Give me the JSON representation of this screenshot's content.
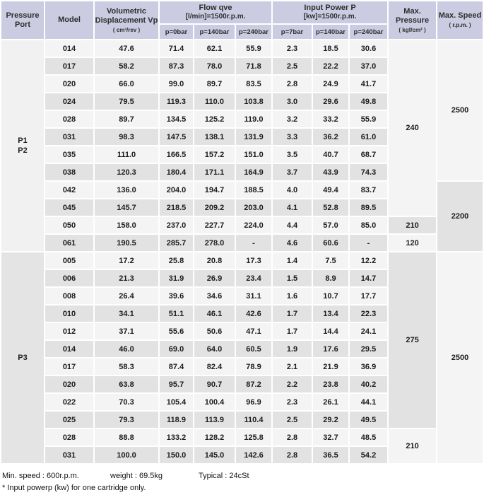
{
  "colors": {
    "header_bg": "#cbcbe1",
    "row_light": "#f4f4f4",
    "row_gray": "#e2e2e2"
  },
  "header": {
    "pressure_port": "Pressure Port",
    "model": "Model",
    "volumetric_title": "Volumetric Displacement Vp",
    "volumetric_unit": "( cm³/rev )",
    "flow_title": "Flow qve",
    "flow_subtitle": "[l/min]=1500r.p.m.",
    "flow_cols": [
      "p=0bar",
      "p=140bar",
      "p=240bar"
    ],
    "power_title": "Input Power P",
    "power_subtitle": "[kw]=1500r.p.m.",
    "power_cols": [
      "p=7bar",
      "p=140bar",
      "p=240bar"
    ],
    "max_pressure_title": "Max. Pressure",
    "max_pressure_unit": "( kgf/cm² )",
    "max_speed_title": "Max. Speed",
    "max_speed_unit": "( r.p.m. )"
  },
  "groups": [
    {
      "port_lines": [
        "P1",
        "P2"
      ],
      "port_shade": "port-light",
      "rows": [
        [
          "014",
          "47.6",
          "71.4",
          "62.1",
          "55.9",
          "2.3",
          "18.5",
          "30.6"
        ],
        [
          "017",
          "58.2",
          "87.3",
          "78.0",
          "71.8",
          "2.5",
          "22.2",
          "37.0"
        ],
        [
          "020",
          "66.0",
          "99.0",
          "89.7",
          "83.5",
          "2.8",
          "24.9",
          "41.7"
        ],
        [
          "024",
          "79.5",
          "119.3",
          "110.0",
          "103.8",
          "3.0",
          "29.6",
          "49.8"
        ],
        [
          "028",
          "89.7",
          "134.5",
          "125.2",
          "119.0",
          "3.2",
          "33.2",
          "55.9"
        ],
        [
          "031",
          "98.3",
          "147.5",
          "138.1",
          "131.9",
          "3.3",
          "36.2",
          "61.0"
        ],
        [
          "035",
          "111.0",
          "166.5",
          "157.2",
          "151.0",
          "3.5",
          "40.7",
          "68.7"
        ],
        [
          "038",
          "120.3",
          "180.4",
          "171.1",
          "164.9",
          "3.7",
          "43.9",
          "74.3"
        ],
        [
          "042",
          "136.0",
          "204.0",
          "194.7",
          "188.5",
          "4.0",
          "49.4",
          "83.7"
        ],
        [
          "045",
          "145.7",
          "218.5",
          "209.2",
          "203.0",
          "4.1",
          "52.8",
          "89.5"
        ],
        [
          "050",
          "158.0",
          "237.0",
          "227.7",
          "224.0",
          "4.4",
          "57.0",
          "85.0"
        ],
        [
          "061",
          "190.5",
          "285.7",
          "278.0",
          "-",
          "4.6",
          "60.6",
          "-"
        ]
      ],
      "max_pressure_spans": [
        {
          "start": 0,
          "span": 10,
          "value": "240",
          "shade": "light"
        },
        {
          "start": 10,
          "span": 1,
          "value": "210",
          "shade": "gray"
        },
        {
          "start": 11,
          "span": 1,
          "value": "120",
          "shade": "light"
        }
      ],
      "max_speed_spans": [
        {
          "start": 0,
          "span": 8,
          "value": "2500",
          "shade": "light"
        },
        {
          "start": 8,
          "span": 4,
          "value": "2200",
          "shade": "gray"
        }
      ]
    },
    {
      "port_lines": [
        "P3"
      ],
      "port_shade": "port-gray",
      "rows": [
        [
          "005",
          "17.2",
          "25.8",
          "20.8",
          "17.3",
          "1.4",
          "7.5",
          "12.2"
        ],
        [
          "006",
          "21.3",
          "31.9",
          "26.9",
          "23.4",
          "1.5",
          "8.9",
          "14.7"
        ],
        [
          "008",
          "26.4",
          "39.6",
          "34.6",
          "31.1",
          "1.6",
          "10.7",
          "17.7"
        ],
        [
          "010",
          "34.1",
          "51.1",
          "46.1",
          "42.6",
          "1.7",
          "13.4",
          "22.3"
        ],
        [
          "012",
          "37.1",
          "55.6",
          "50.6",
          "47.1",
          "1.7",
          "14.4",
          "24.1"
        ],
        [
          "014",
          "46.0",
          "69.0",
          "64.0",
          "60.5",
          "1.9",
          "17.6",
          "29.5"
        ],
        [
          "017",
          "58.3",
          "87.4",
          "82.4",
          "78.9",
          "2.1",
          "21.9",
          "36.9"
        ],
        [
          "020",
          "63.8",
          "95.7",
          "90.7",
          "87.2",
          "2.2",
          "23.8",
          "40.2"
        ],
        [
          "022",
          "70.3",
          "105.4",
          "100.4",
          "96.9",
          "2.3",
          "26.1",
          "44.1"
        ],
        [
          "025",
          "79.3",
          "118.9",
          "113.9",
          "110.4",
          "2.5",
          "29.2",
          "49.5"
        ],
        [
          "028",
          "88.8",
          "133.2",
          "128.2",
          "125.8",
          "2.8",
          "32.7",
          "48.5"
        ],
        [
          "031",
          "100.0",
          "150.0",
          "145.0",
          "142.6",
          "2.8",
          "36.5",
          "54.2"
        ]
      ],
      "max_pressure_spans": [
        {
          "start": 0,
          "span": 10,
          "value": "275",
          "shade": "gray"
        },
        {
          "start": 10,
          "span": 2,
          "value": "210",
          "shade": "light"
        }
      ],
      "max_speed_spans": [
        {
          "start": 0,
          "span": 12,
          "value": "2500",
          "shade": "light"
        }
      ]
    }
  ],
  "footer": {
    "min_speed": "Min. speed : 600r.p.m.",
    "weight": "weight : 69.5kg",
    "typical": "Typical : 24cSt",
    "note": "* Input powerp (kw) for one cartridge only."
  }
}
